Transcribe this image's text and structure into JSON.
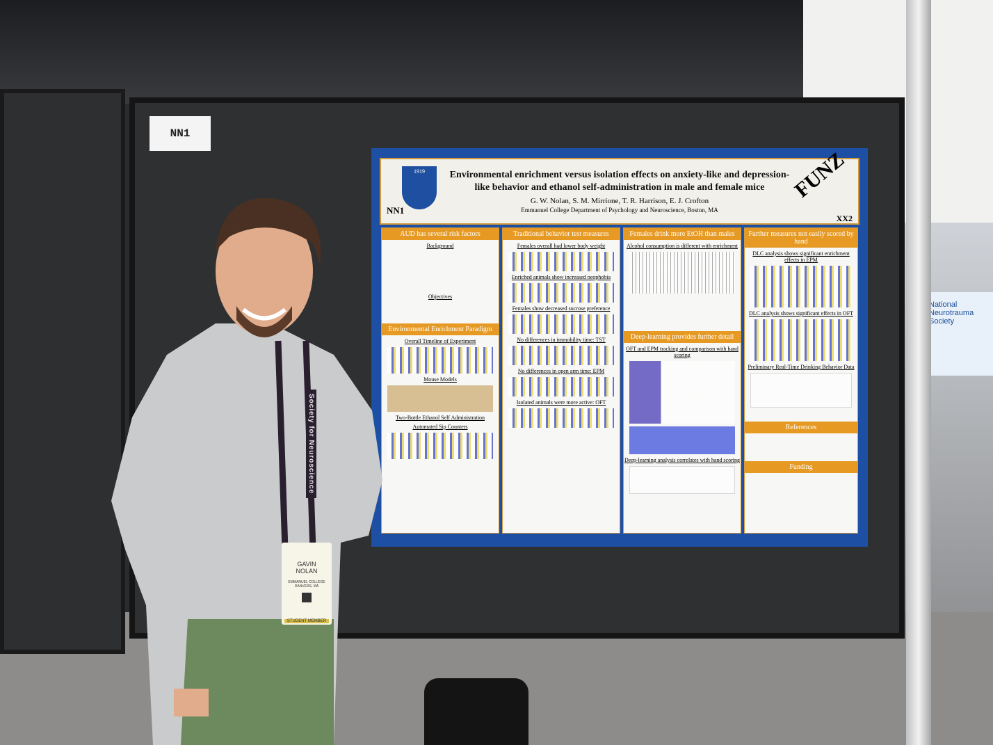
{
  "scene": {
    "board_label": "NN1",
    "booth_sign": "National Neurotrauma Society"
  },
  "poster": {
    "title": "Environmental enrichment versus isolation effects on anxiety-like and depression-like behavior and ethanol self-administration in male and female mice",
    "authors": "G. W. Nolan, S. M. Mirrione, T. R. Harrison, E. J. Crofton",
    "affiliation": "Emmanuel College Department of Psychology and Neuroscience, Boston, MA",
    "crest_year": "1919",
    "left_code": "NN1",
    "right_code": "XX2",
    "logo": "FUNZ",
    "columns": [
      {
        "heading": "AUD has several risk factors",
        "subs": [
          "Background",
          "Objectives"
        ],
        "heading2": "Environmental Enrichment Paradigm",
        "subs2": [
          "Overall Timeline of Experiment",
          "Mouse Models",
          "Two-Bottle Ethanol Self Administration",
          "Automated Sip Counters"
        ]
      },
      {
        "heading": "Traditional behavior test measures",
        "subs": [
          "Females overall had lower body weight",
          "Enriched animals show increased neophobia",
          "Females show decreased sucrose preference",
          "No differences in immobility time: TST",
          "No differences in open arm time: EPM",
          "Isolated animals were more active: OFT"
        ]
      },
      {
        "heading": "Females drink more EtOH than males",
        "subs": [
          "Alcohol consumption is different with enrichment"
        ],
        "heading2": "Deep-learning provides further detail",
        "subs2": [
          "OFT and EPM tracking and comparison with hand scoring",
          "Deep-learning analysis correlates with hand scoring"
        ]
      },
      {
        "heading": "Further measures not easily scored by hand",
        "subs": [
          "DLC analysis shows significant enrichment effects in EPM",
          "DLC analysis shows significant effects in OFT",
          "Preliminary Real-Time Drinking Behavior Data"
        ],
        "heading2": "References",
        "heading3": "Funding"
      }
    ]
  },
  "badge": {
    "first": "GAVIN",
    "last": "NOLAN",
    "org": "EMMANUEL COLLEGE",
    "loc": "DANVERS, MA",
    "type": "STUDENT MEMBER"
  },
  "lanyard": "Society for Neuroscience"
}
